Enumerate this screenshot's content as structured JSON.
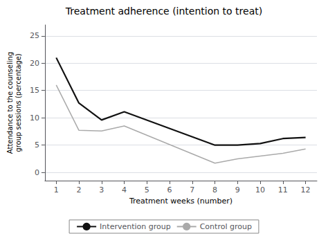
{
  "chart_data": {
    "type": "line",
    "title": "Treatment adherence (intention to treat)",
    "xlabel": "Treatment weeks (number)",
    "ylabel": "Attendance to the counseling group sessions (percentage)",
    "series": [
      {
        "name": "Intervention group",
        "color": "#111111",
        "x": [
          1,
          2,
          3,
          4,
          8,
          9,
          10,
          11,
          12
        ],
        "values": [
          21,
          12.7,
          9.6,
          11.1,
          5.0,
          5.0,
          5.3,
          6.2,
          6.4
        ]
      },
      {
        "name": "Control group",
        "color": "#aaaaaa",
        "x": [
          1,
          2,
          3,
          4,
          8,
          9,
          10,
          11,
          12
        ],
        "values": [
          16.0,
          7.7,
          7.6,
          8.5,
          1.7,
          2.5,
          3.0,
          3.5,
          4.3
        ]
      }
    ],
    "xlim": [
      0.5,
      12.5
    ],
    "xticks": [
      1,
      2,
      3,
      4,
      5,
      6,
      7,
      8,
      9,
      10,
      11,
      12
    ],
    "ylim": [
      -1.5,
      27
    ],
    "yticks": [
      0,
      5,
      10,
      15,
      20,
      25
    ],
    "grid": true,
    "legend": "bottom"
  }
}
